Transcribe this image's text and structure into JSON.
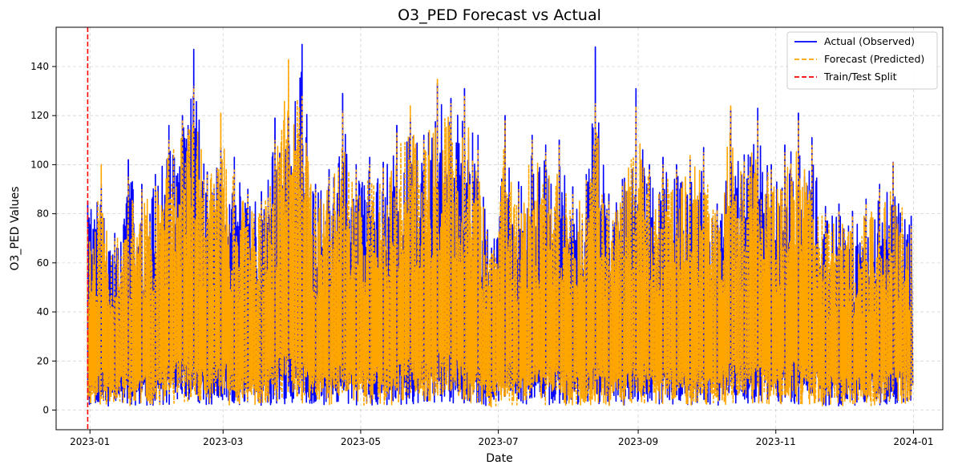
{
  "chart_data": {
    "type": "line",
    "title": "O3_PED Forecast vs Actual",
    "xlabel": "Date",
    "ylabel": "O3_PED Values",
    "x_ticks": [
      "2023-01",
      "2023-03",
      "2023-05",
      "2023-07",
      "2023-09",
      "2023-11",
      "2024-01"
    ],
    "y_ticks": [
      0,
      20,
      40,
      60,
      80,
      100,
      120,
      140
    ],
    "xlim": [
      "2022-12-17",
      "2024-01-14"
    ],
    "ylim": [
      -8,
      156
    ],
    "grid": true,
    "legend_position": "top-right",
    "split_date": "2022-12-31",
    "series": [
      {
        "name": "Actual (Observed)",
        "color": "#0000ff",
        "style": "solid",
        "x": [
          "2022-12-31",
          "2023-01-06",
          "2023-01-12",
          "2023-01-18",
          "2023-01-24",
          "2023-01-30",
          "2023-02-05",
          "2023-02-11",
          "2023-02-16",
          "2023-02-22",
          "2023-02-28",
          "2023-03-06",
          "2023-03-12",
          "2023-03-18",
          "2023-03-24",
          "2023-03-30",
          "2023-04-05",
          "2023-04-11",
          "2023-04-17",
          "2023-04-23",
          "2023-04-29",
          "2023-05-05",
          "2023-05-11",
          "2023-05-17",
          "2023-05-23",
          "2023-05-29",
          "2023-06-04",
          "2023-06-10",
          "2023-06-16",
          "2023-06-22",
          "2023-06-28",
          "2023-07-04",
          "2023-07-10",
          "2023-07-16",
          "2023-07-22",
          "2023-07-28",
          "2023-08-03",
          "2023-08-09",
          "2023-08-13",
          "2023-08-19",
          "2023-08-25",
          "2023-08-31",
          "2023-09-06",
          "2023-09-12",
          "2023-09-18",
          "2023-09-24",
          "2023-09-30",
          "2023-10-06",
          "2023-10-12",
          "2023-10-18",
          "2023-10-24",
          "2023-10-30",
          "2023-11-05",
          "2023-11-11",
          "2023-11-17",
          "2023-11-23",
          "2023-11-29",
          "2023-12-05",
          "2023-12-11",
          "2023-12-17",
          "2023-12-23",
          "2023-12-31"
        ],
        "values": [
          85,
          92,
          72,
          102,
          92,
          96,
          116,
          120,
          147,
          97,
          107,
          103,
          90,
          89,
          119,
          120,
          149,
          92,
          98,
          129,
          100,
          103,
          101,
          116,
          119,
          112,
          133,
          127,
          131,
          112,
          66,
          120,
          93,
          112,
          108,
          110,
          91,
          96,
          148,
          88,
          94,
          131,
          100,
          103,
          100,
          102,
          107,
          84,
          122,
          104,
          123,
          100,
          108,
          121,
          111,
          83,
          84,
          81,
          86,
          92,
          101,
          79
        ]
      },
      {
        "name": "Forecast (Predicted)",
        "color": "#ffa500",
        "style": "dashed",
        "x": [
          "2022-12-31",
          "2023-01-06",
          "2023-01-12",
          "2023-01-18",
          "2023-01-24",
          "2023-01-30",
          "2023-02-05",
          "2023-02-11",
          "2023-02-16",
          "2023-02-22",
          "2023-02-28",
          "2023-03-06",
          "2023-03-12",
          "2023-03-18",
          "2023-03-24",
          "2023-03-30",
          "2023-04-05",
          "2023-04-11",
          "2023-04-17",
          "2023-04-23",
          "2023-04-29",
          "2023-05-05",
          "2023-05-11",
          "2023-05-17",
          "2023-05-23",
          "2023-05-29",
          "2023-06-04",
          "2023-06-10",
          "2023-06-16",
          "2023-06-22",
          "2023-06-28",
          "2023-07-04",
          "2023-07-10",
          "2023-07-16",
          "2023-07-22",
          "2023-07-28",
          "2023-08-03",
          "2023-08-09",
          "2023-08-13",
          "2023-08-19",
          "2023-08-25",
          "2023-08-31",
          "2023-09-06",
          "2023-09-12",
          "2023-09-18",
          "2023-09-24",
          "2023-09-30",
          "2023-10-06",
          "2023-10-12",
          "2023-10-18",
          "2023-10-24",
          "2023-10-30",
          "2023-11-05",
          "2023-11-11",
          "2023-11-17",
          "2023-11-23",
          "2023-11-29",
          "2023-12-05",
          "2023-12-11",
          "2023-12-17",
          "2023-12-23",
          "2023-12-31"
        ],
        "values": [
          75,
          100,
          70,
          95,
          90,
          92,
          110,
          118,
          132,
          96,
          121,
          98,
          88,
          85,
          110,
          143,
          128,
          90,
          95,
          122,
          98,
          100,
          99,
          113,
          124,
          110,
          135,
          125,
          128,
          106,
          64,
          118,
          90,
          110,
          105,
          108,
          88,
          94,
          125,
          85,
          92,
          124,
          98,
          100,
          98,
          104,
          105,
          82,
          124,
          102,
          118,
          98,
          105,
          118,
          108,
          80,
          81,
          79,
          84,
          90,
          101,
          75
        ]
      }
    ]
  }
}
